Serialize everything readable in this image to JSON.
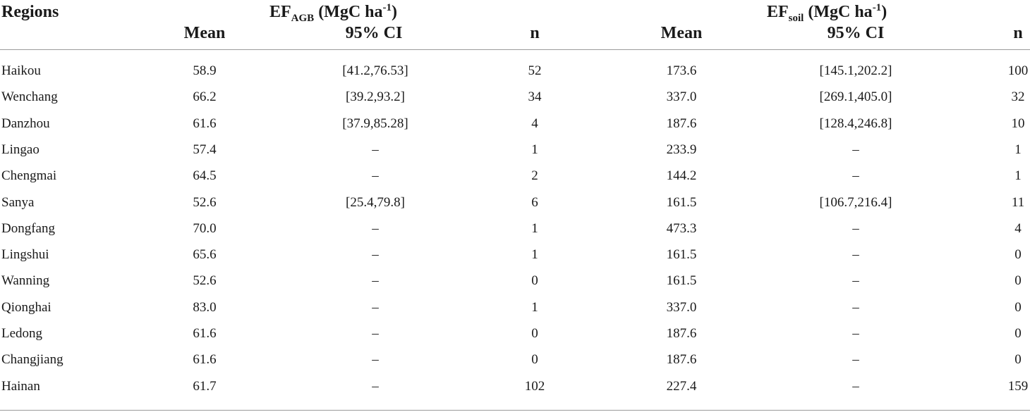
{
  "table": {
    "headers": {
      "regions": "Regions",
      "agb_prefix": "EF",
      "agb_sub": "AGB",
      "agb_unit_pre": " (MgC ha",
      "agb_unit_sup": "-1",
      "agb_unit_post": ")",
      "soil_prefix": "EF",
      "soil_sub": "soil",
      "soil_unit_pre": " (MgC ha",
      "soil_unit_sup": "-1",
      "soil_unit_post": ")",
      "mean": "Mean",
      "ci": "95% CI",
      "n": "n"
    },
    "rows": [
      {
        "region": "Haikou",
        "agb_mean": "58.9",
        "agb_ci": "[41.2,76.53]",
        "agb_n": "52",
        "soil_mean": "173.6",
        "soil_ci": "[145.1,202.2]",
        "soil_n": "100"
      },
      {
        "region": "Wenchang",
        "agb_mean": "66.2",
        "agb_ci": "[39.2,93.2]",
        "agb_n": "34",
        "soil_mean": "337.0",
        "soil_ci": "[269.1,405.0]",
        "soil_n": "32"
      },
      {
        "region": "Danzhou",
        "agb_mean": "61.6",
        "agb_ci": "[37.9,85.28]",
        "agb_n": "4",
        "soil_mean": "187.6",
        "soil_ci": "[128.4,246.8]",
        "soil_n": "10"
      },
      {
        "region": "Lingao",
        "agb_mean": "57.4",
        "agb_ci": "–",
        "agb_n": "1",
        "soil_mean": "233.9",
        "soil_ci": "–",
        "soil_n": "1"
      },
      {
        "region": "Chengmai",
        "agb_mean": "64.5",
        "agb_ci": "–",
        "agb_n": "2",
        "soil_mean": "144.2",
        "soil_ci": "–",
        "soil_n": "1"
      },
      {
        "region": "Sanya",
        "agb_mean": "52.6",
        "agb_ci": "[25.4,79.8]",
        "agb_n": "6",
        "soil_mean": "161.5",
        "soil_ci": "[106.7,216.4]",
        "soil_n": "11"
      },
      {
        "region": "Dongfang",
        "agb_mean": "70.0",
        "agb_ci": "–",
        "agb_n": "1",
        "soil_mean": "473.3",
        "soil_ci": "–",
        "soil_n": "4"
      },
      {
        "region": "Lingshui",
        "agb_mean": "65.6",
        "agb_ci": "–",
        "agb_n": "1",
        "soil_mean": "161.5",
        "soil_ci": "–",
        "soil_n": "0"
      },
      {
        "region": "Wanning",
        "agb_mean": "52.6",
        "agb_ci": "–",
        "agb_n": "0",
        "soil_mean": "161.5",
        "soil_ci": "–",
        "soil_n": "0"
      },
      {
        "region": "Qionghai",
        "agb_mean": "83.0",
        "agb_ci": "–",
        "agb_n": "1",
        "soil_mean": "337.0",
        "soil_ci": "–",
        "soil_n": "0"
      },
      {
        "region": "Ledong",
        "agb_mean": "61.6",
        "agb_ci": "–",
        "agb_n": "0",
        "soil_mean": "187.6",
        "soil_ci": "–",
        "soil_n": "0"
      },
      {
        "region": "Changjiang",
        "agb_mean": "61.6",
        "agb_ci": "–",
        "agb_n": "0",
        "soil_mean": "187.6",
        "soil_ci": "–",
        "soil_n": "0"
      },
      {
        "region": "Hainan",
        "agb_mean": "61.7",
        "agb_ci": "–",
        "agb_n": "102",
        "soil_mean": "227.4",
        "soil_ci": "–",
        "soil_n": "159"
      }
    ]
  }
}
